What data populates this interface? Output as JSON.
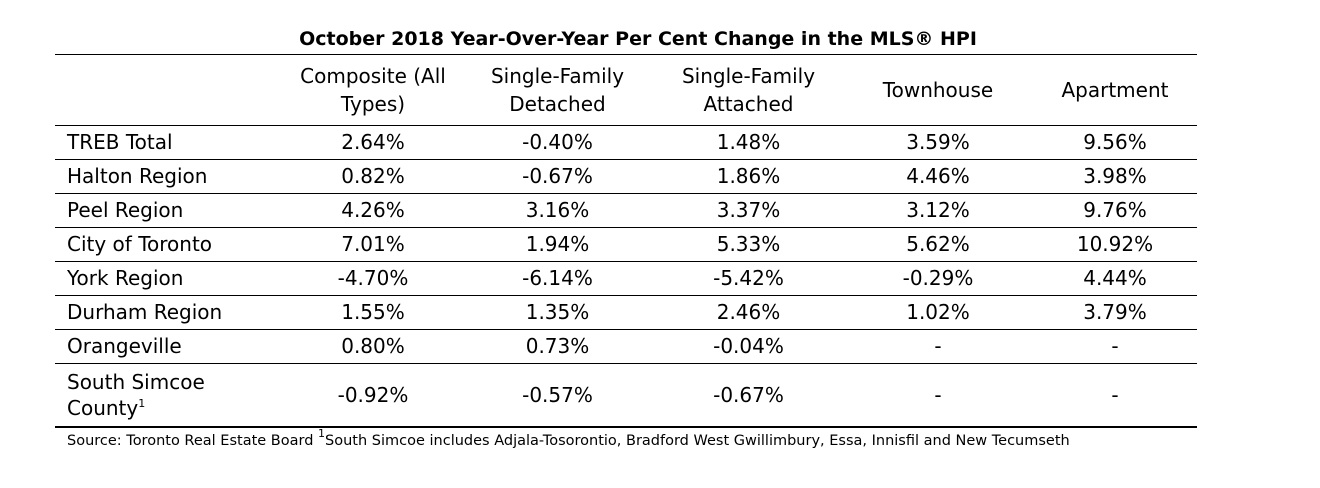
{
  "table": {
    "title": "October 2018 Year-Over-Year Per Cent Change in the MLS® HPI",
    "columns": [
      {
        "line1": "Composite (All",
        "line2": "Types)"
      },
      {
        "line1": "Single-Family",
        "line2": "Detached"
      },
      {
        "line1": "Single-Family",
        "line2": "Attached"
      },
      {
        "line1": "Townhouse",
        "line2": ""
      },
      {
        "line1": "Apartment",
        "line2": ""
      }
    ],
    "rows": [
      {
        "region": "TREB Total",
        "values": [
          "2.64%",
          "-0.40%",
          "1.48%",
          "3.59%",
          "9.56%"
        ]
      },
      {
        "region": "Halton Region",
        "values": [
          "0.82%",
          "-0.67%",
          "1.86%",
          "4.46%",
          "3.98%"
        ]
      },
      {
        "region": "Peel Region",
        "values": [
          "4.26%",
          "3.16%",
          "3.37%",
          "3.12%",
          "9.76%"
        ]
      },
      {
        "region": "City of Toronto",
        "values": [
          "7.01%",
          "1.94%",
          "5.33%",
          "5.62%",
          "10.92%"
        ]
      },
      {
        "region": "York Region",
        "values": [
          "-4.70%",
          "-6.14%",
          "-5.42%",
          "-0.29%",
          "4.44%"
        ]
      },
      {
        "region": "Durham Region",
        "values": [
          "1.55%",
          "1.35%",
          "2.46%",
          "1.02%",
          "3.79%"
        ]
      },
      {
        "region": "Orangeville",
        "values": [
          "0.80%",
          "0.73%",
          "-0.04%",
          "-",
          "-"
        ]
      }
    ],
    "last_row": {
      "region_line1": "South Simcoe",
      "region_line2": "County",
      "footnote_mark": "1",
      "values": [
        "-0.92%",
        "-0.57%",
        "-0.67%",
        "-",
        "-"
      ]
    },
    "source": {
      "prefix": "Source: Toronto Real Estate Board ",
      "footnote_mark": "1",
      "note": "South Simcoe includes Adjala-Tosorontio, Bradford West Gwillimbury, Essa, Innisfil and New Tecumseth"
    }
  }
}
